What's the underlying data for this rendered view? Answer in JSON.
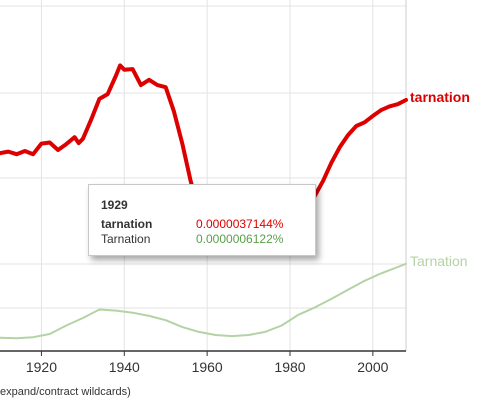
{
  "chart_data": {
    "type": "line",
    "x_ticks": [
      1920,
      1940,
      1960,
      1980,
      2000
    ],
    "xlim": [
      1910,
      2008
    ],
    "series": [
      {
        "name": "tarnation",
        "color": "#dd0000",
        "x": [
          1910,
          1912,
          1914,
          1916,
          1918,
          1920,
          1922,
          1924,
          1926,
          1928,
          1929,
          1930,
          1932,
          1934,
          1936,
          1938,
          1939,
          1940,
          1942,
          1944,
          1946,
          1948,
          1950,
          1952,
          1954,
          1956,
          1958,
          1960,
          1962,
          1964,
          1966,
          1968,
          1970,
          1972,
          1974,
          1976,
          1978,
          1980,
          1982,
          1984,
          1986,
          1988,
          1990,
          1992,
          1994,
          1996,
          1998,
          2000,
          2002,
          2004,
          2006,
          2008
        ],
        "y": [
          3.52,
          3.55,
          3.5,
          3.56,
          3.5,
          3.7,
          3.72,
          3.58,
          3.69,
          3.82,
          3.71,
          3.79,
          4.15,
          4.54,
          4.63,
          4.98,
          5.17,
          5.09,
          5.1,
          4.8,
          4.9,
          4.8,
          4.76,
          4.3,
          3.7,
          3.0,
          2.44,
          2.06,
          1.98,
          1.88,
          1.78,
          1.72,
          1.76,
          1.8,
          1.9,
          1.96,
          2.03,
          2.12,
          2.32,
          2.48,
          2.72,
          3.0,
          3.34,
          3.63,
          3.86,
          4.03,
          4.1,
          4.22,
          4.33,
          4.4,
          4.44,
          4.52
        ]
      },
      {
        "name": "Tarnation",
        "color": "#b3d3a5",
        "x": [
          1910,
          1914,
          1918,
          1922,
          1926,
          1930,
          1934,
          1938,
          1942,
          1946,
          1950,
          1954,
          1958,
          1962,
          1966,
          1970,
          1974,
          1978,
          1982,
          1986,
          1990,
          1994,
          1998,
          2002,
          2006,
          2008
        ],
        "y": [
          0.05,
          0.04,
          0.06,
          0.12,
          0.28,
          0.42,
          0.58,
          0.56,
          0.52,
          0.46,
          0.38,
          0.25,
          0.16,
          0.1,
          0.08,
          0.1,
          0.16,
          0.28,
          0.48,
          0.62,
          0.78,
          0.95,
          1.12,
          1.26,
          1.38,
          1.44
        ]
      }
    ],
    "ylim": [
      -0.2,
      6.4
    ],
    "grid": true
  },
  "tooltip": {
    "year": "1929",
    "rows": [
      {
        "name": "tarnation",
        "value": "0.0000037144%",
        "color": "#dd0000"
      },
      {
        "name": "Tarnation",
        "value": "0.0000006122%",
        "color": "#5a9e4a"
      }
    ]
  },
  "footer_text": "expand/contract wildcards)"
}
